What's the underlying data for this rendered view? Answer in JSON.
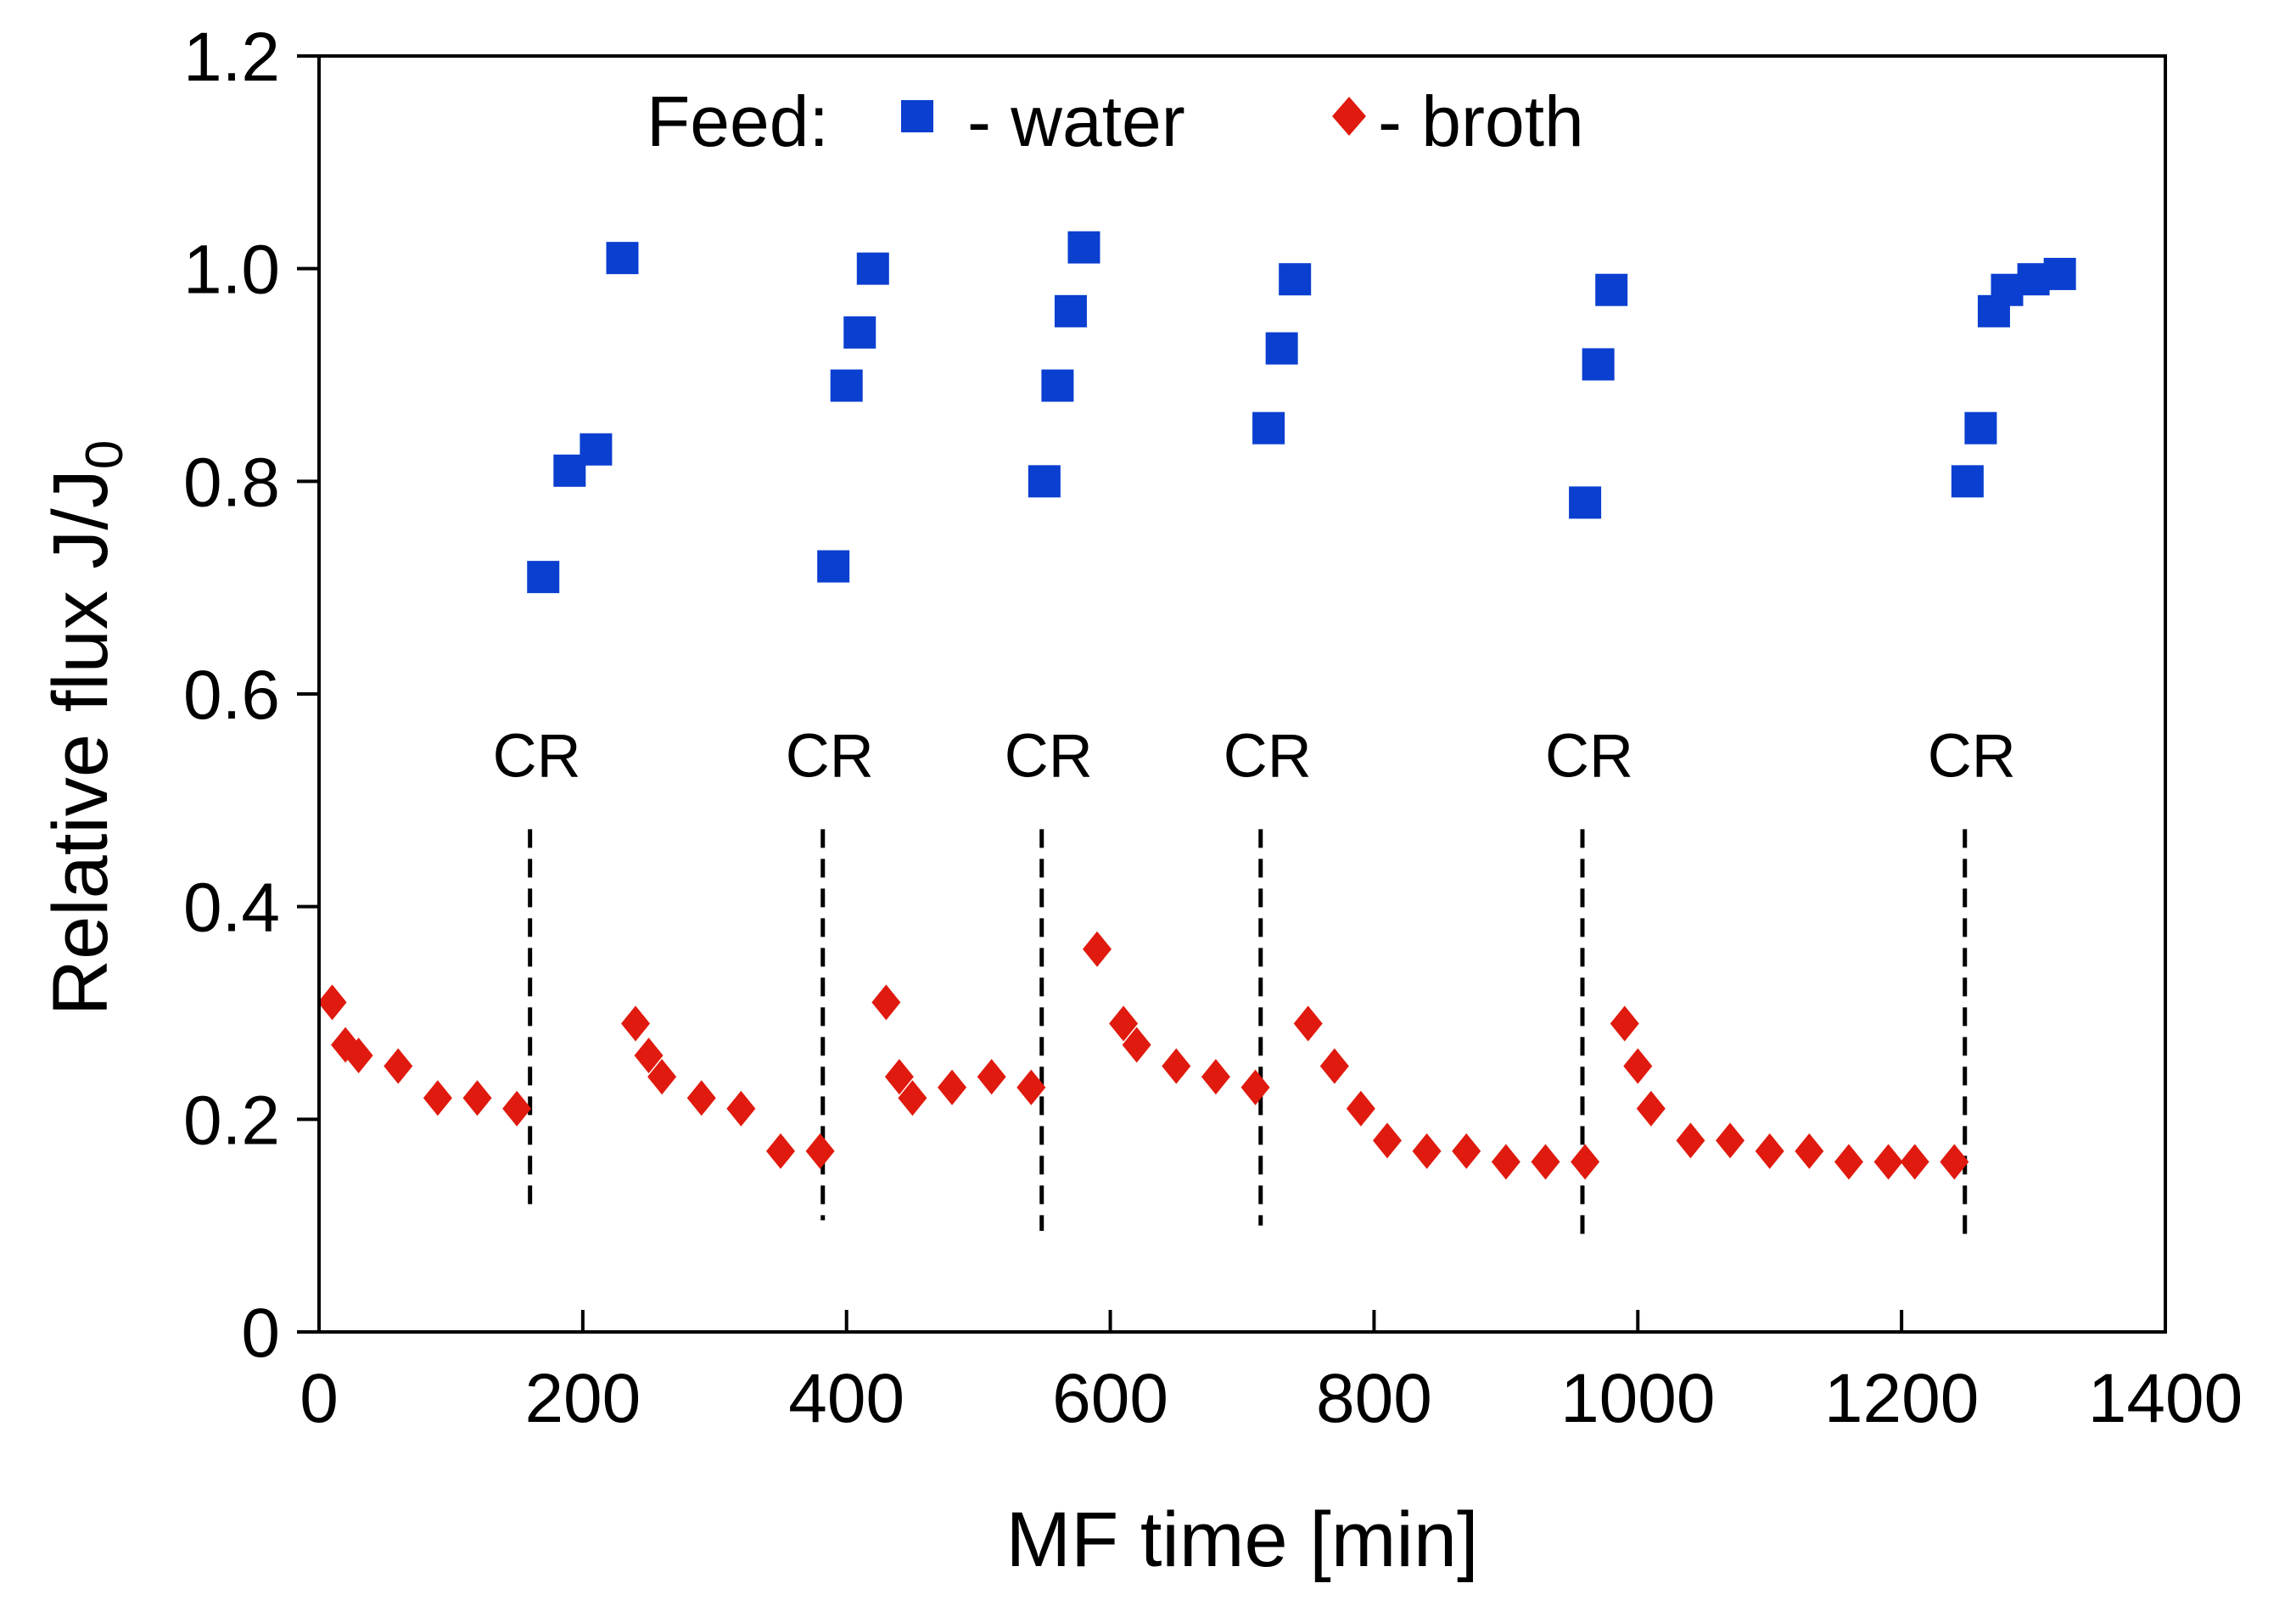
{
  "chart_data": {
    "type": "scatter",
    "xlabel": "MF time [min]",
    "ylabel_main": "Relative flux J/J",
    "ylabel_subscript": "0",
    "xlim": [
      0,
      1400
    ],
    "ylim": [
      0,
      1.2
    ],
    "grid": false,
    "x_ticks": [
      0,
      200,
      400,
      600,
      800,
      1000,
      1200,
      1400
    ],
    "x_tick_labels": [
      "0",
      "200",
      "400",
      "600",
      "800",
      "1000",
      "1200",
      "1400"
    ],
    "y_ticks": [
      0,
      0.2,
      0.4,
      0.6,
      0.8,
      1.0,
      1.2
    ],
    "y_tick_labels": [
      "0",
      "0.2",
      "0.4",
      "0.6",
      "0.8",
      "1.0",
      "1.2"
    ],
    "legend": {
      "placement": "top-center",
      "prefix": "Feed:",
      "entries": [
        "- water",
        "- broth"
      ]
    },
    "series": [
      {
        "name": "water",
        "marker": "square",
        "color": "#0a3fd0",
        "x": [
          170,
          190,
          210,
          230,
          390,
          400,
          410,
          420,
          550,
          560,
          570,
          580,
          720,
          730,
          740,
          960,
          970,
          980,
          1250,
          1260,
          1270,
          1280,
          1300,
          1320
        ],
        "y": [
          0.71,
          0.81,
          0.83,
          1.01,
          0.72,
          0.89,
          0.94,
          1.0,
          0.8,
          0.89,
          0.96,
          1.02,
          0.85,
          0.925,
          0.99,
          0.78,
          0.91,
          0.98,
          0.8,
          0.85,
          0.96,
          0.98,
          0.99,
          0.995
        ]
      },
      {
        "name": "broth",
        "marker": "diamond",
        "color": "#e01a0e",
        "x": [
          10,
          20,
          30,
          60,
          90,
          120,
          150,
          240,
          250,
          260,
          290,
          320,
          350,
          380,
          430,
          440,
          450,
          480,
          510,
          540,
          590,
          610,
          620,
          650,
          680,
          710,
          750,
          770,
          790,
          810,
          840,
          870,
          900,
          930,
          960,
          990,
          1000,
          1010,
          1040,
          1070,
          1100,
          1130,
          1160,
          1190,
          1210,
          1240
        ],
        "y": [
          0.31,
          0.27,
          0.26,
          0.25,
          0.22,
          0.22,
          0.21,
          0.29,
          0.26,
          0.24,
          0.22,
          0.21,
          0.17,
          0.17,
          0.31,
          0.24,
          0.22,
          0.23,
          0.24,
          0.23,
          0.36,
          0.29,
          0.27,
          0.25,
          0.24,
          0.23,
          0.29,
          0.25,
          0.21,
          0.18,
          0.17,
          0.17,
          0.16,
          0.16,
          0.16,
          0.29,
          0.25,
          0.21,
          0.18,
          0.18,
          0.17,
          0.17,
          0.16,
          0.16,
          0.16,
          0.16
        ]
      }
    ],
    "annotations": [
      {
        "text": "CR",
        "x": 160,
        "y_top": 0.5,
        "y_bottom": 0.11
      },
      {
        "text": "CR",
        "x": 382,
        "y_top": 0.5,
        "y_bottom": 0.105
      },
      {
        "text": "CR",
        "x": 548,
        "y_top": 0.5,
        "y_bottom": 0.095
      },
      {
        "text": "CR",
        "x": 714,
        "y_top": 0.5,
        "y_bottom": 0.1
      },
      {
        "text": "CR",
        "x": 958,
        "y_top": 0.5,
        "y_bottom": 0.09
      },
      {
        "text": "CR",
        "x": 1248,
        "y_top": 0.5,
        "y_bottom": 0.085
      }
    ]
  }
}
